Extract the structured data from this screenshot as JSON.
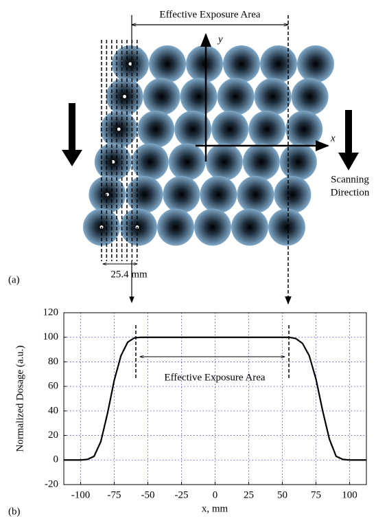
{
  "diagram": {
    "top_label": "Effective Exposure Area",
    "y_axis": "y",
    "x_axis": "x",
    "scan_label": [
      "Scanning",
      "Direction"
    ],
    "width_label": "25.4 mm"
  },
  "panel_labels": [
    "(a)",
    "(b)"
  ],
  "chart_data": {
    "type": "line",
    "x": [
      -112.5,
      -100,
      -95,
      -90,
      -85,
      -80,
      -75,
      -70,
      -65,
      -60,
      -55,
      55,
      60,
      65,
      70,
      75,
      80,
      85,
      90,
      95,
      100,
      112.5
    ],
    "values": [
      0,
      0,
      0.5,
      3,
      15,
      38,
      65,
      85,
      96,
      99.5,
      100,
      100,
      99,
      95,
      85,
      66,
      40,
      17,
      3,
      0.5,
      0,
      0
    ],
    "color": "#000000",
    "xlim": [
      -112.5,
      112.5
    ],
    "xticks": [
      -100,
      -75,
      -50,
      -25,
      0,
      25,
      50,
      75,
      100
    ],
    "ylim": [
      -20,
      120
    ],
    "yticks": [
      -20,
      0,
      20,
      40,
      60,
      80,
      100,
      120
    ],
    "xlabel": "x, mm",
    "ylabel": "Normalized Dosage (a.u.)",
    "annotation": "Effective Exposure Area",
    "grid": true
  }
}
